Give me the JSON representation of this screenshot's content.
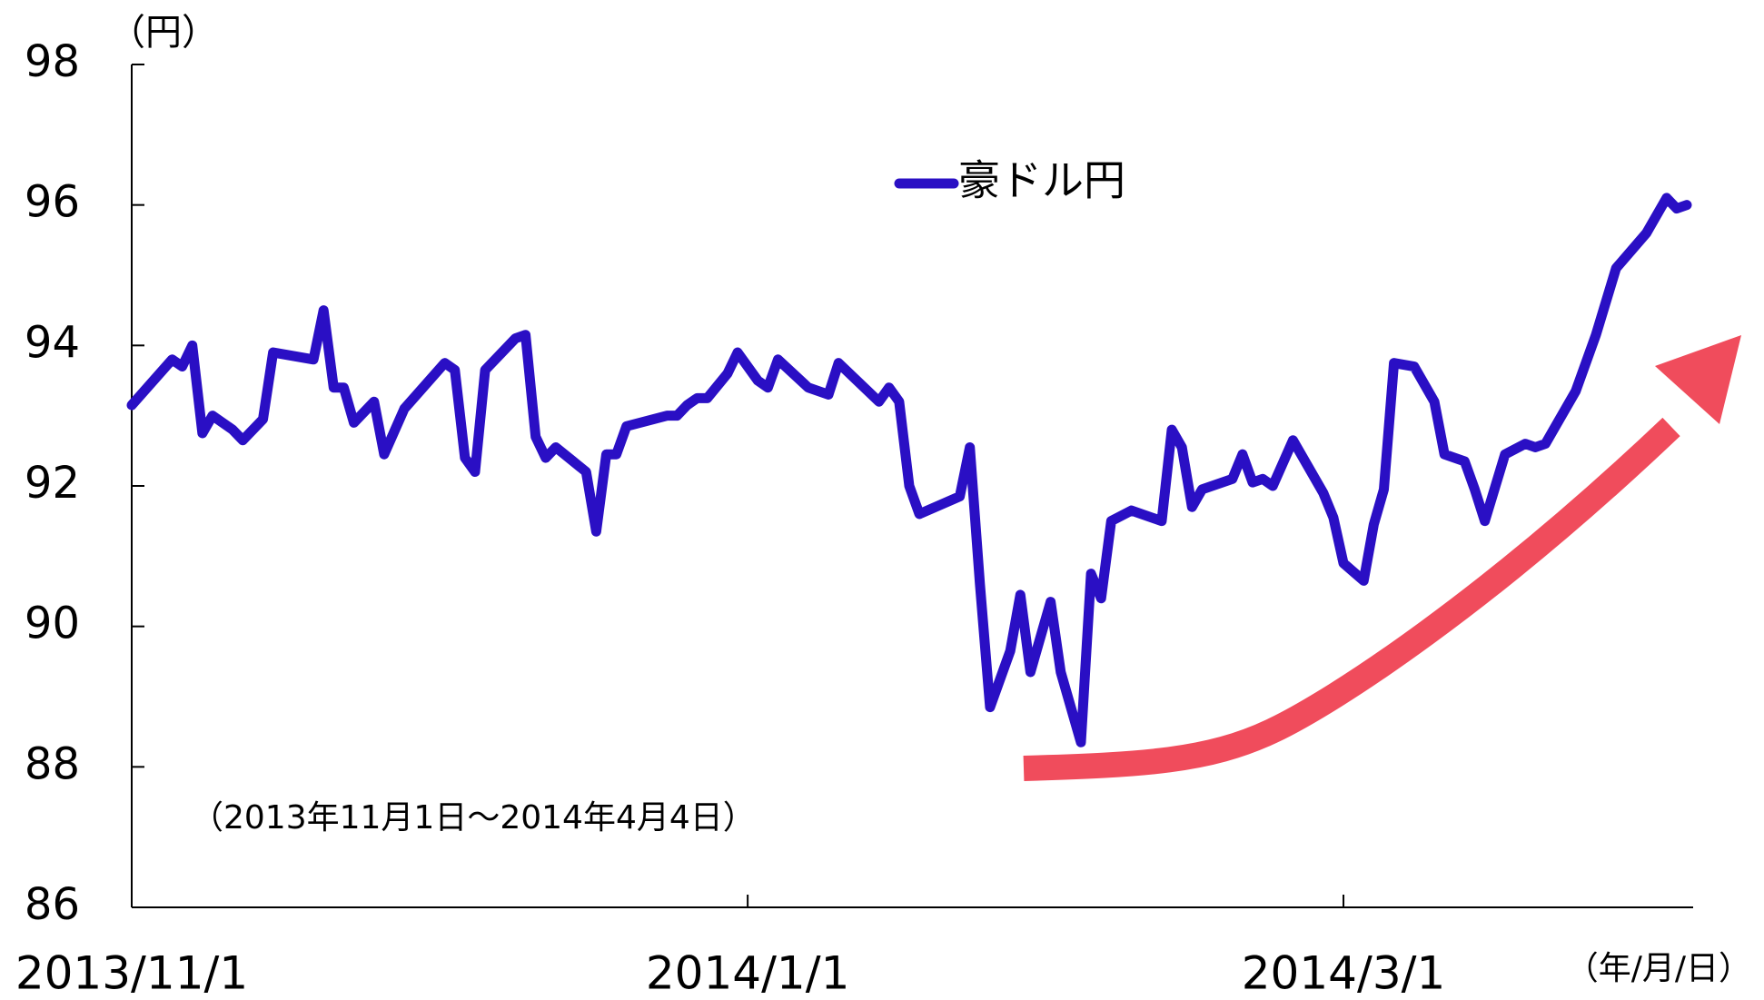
{
  "chart_data": {
    "type": "line",
    "y_label": "（円）",
    "x_label": "（年/月/日）",
    "annotation": "（2013年11月1日～2014年4月4日）",
    "xlim": [
      "2013/11/1",
      "2014/4/4"
    ],
    "xticks": [
      "2013/11/1",
      "2014/1/1",
      "2014/3/1"
    ],
    "ylim": [
      86,
      98
    ],
    "yticks": [
      86,
      88,
      90,
      92,
      94,
      96,
      98
    ],
    "x": [
      "2013/11/1",
      "2013/11/5",
      "2013/11/6",
      "2013/11/7",
      "2013/11/8",
      "2013/11/9",
      "2013/11/11",
      "2013/11/12",
      "2013/11/14",
      "2013/11/15",
      "2013/11/19",
      "2013/11/20",
      "2013/11/21",
      "2013/11/22",
      "2013/11/23",
      "2013/11/25",
      "2013/11/26",
      "2013/11/28",
      "2013/12/2",
      "2013/12/3",
      "2013/12/4",
      "2013/12/5",
      "2013/12/6",
      "2013/12/9",
      "2013/12/10",
      "2013/12/11",
      "2013/12/12",
      "2013/12/13",
      "2013/12/16",
      "2013/12/17",
      "2013/12/18",
      "2013/12/19",
      "2013/12/20",
      "2013/12/24",
      "2013/12/25",
      "2013/12/26",
      "2013/12/27",
      "2013/12/28",
      "2013/12/30",
      "2013/12/31",
      "2014/1/2",
      "2014/1/3",
      "2014/1/4",
      "2014/1/7",
      "2014/1/9",
      "2014/1/10",
      "2014/1/14",
      "2014/1/15",
      "2014/1/16",
      "2014/1/17",
      "2014/1/18",
      "2014/1/22",
      "2014/1/23",
      "2014/1/24",
      "2014/1/25",
      "2014/1/27",
      "2014/1/28",
      "2014/1/29",
      "2014/1/31",
      "2014/2/1",
      "2014/2/3",
      "2014/2/4",
      "2014/2/5",
      "2014/2/6",
      "2014/2/8",
      "2014/2/11",
      "2014/2/12",
      "2014/2/13",
      "2014/2/14",
      "2014/2/15",
      "2014/2/18",
      "2014/2/19",
      "2014/2/20",
      "2014/2/21",
      "2014/2/22",
      "2014/2/24",
      "2014/2/27",
      "2014/2/28",
      "2014/3/1",
      "2014/3/3",
      "2014/3/4",
      "2014/3/5",
      "2014/3/6",
      "2014/3/8",
      "2014/3/10",
      "2014/3/11",
      "2014/3/13",
      "2014/3/14",
      "2014/3/15",
      "2014/3/17",
      "2014/3/19",
      "2014/3/20",
      "2014/3/21",
      "2014/3/22",
      "2014/3/24",
      "2014/3/26",
      "2014/3/28",
      "2014/3/31",
      "2014/4/2",
      "2014/4/3",
      "2014/4/4"
    ],
    "series": [
      {
        "name": "豪ドル円",
        "color": "#2a0fc4",
        "values": [
          93.15,
          93.8,
          93.7,
          94.0,
          92.75,
          93.0,
          92.8,
          92.65,
          92.95,
          93.9,
          93.8,
          94.5,
          93.4,
          93.4,
          92.9,
          93.2,
          92.45,
          93.1,
          93.75,
          93.65,
          92.4,
          92.2,
          93.65,
          94.1,
          94.15,
          92.7,
          92.4,
          92.55,
          92.2,
          91.35,
          92.45,
          92.45,
          92.85,
          93.0,
          93.0,
          93.15,
          93.25,
          93.25,
          93.6,
          93.9,
          93.5,
          93.4,
          93.8,
          93.4,
          93.3,
          93.75,
          93.2,
          93.4,
          93.2,
          92.0,
          91.6,
          91.85,
          92.55,
          90.6,
          88.85,
          89.65,
          90.45,
          89.35,
          90.35,
          89.35,
          88.35,
          90.75,
          90.4,
          91.5,
          91.65,
          91.5,
          92.8,
          92.55,
          91.7,
          91.95,
          92.1,
          92.45,
          92.05,
          92.1,
          92.0,
          92.65,
          91.9,
          91.55,
          90.9,
          90.65,
          91.45,
          91.95,
          93.75,
          93.7,
          93.2,
          92.45,
          92.35,
          91.95,
          91.5,
          92.45,
          92.6,
          92.55,
          92.6,
          92.85,
          93.35,
          94.15,
          95.1,
          95.6,
          96.1,
          95.95,
          96.0
        ]
      }
    ]
  }
}
